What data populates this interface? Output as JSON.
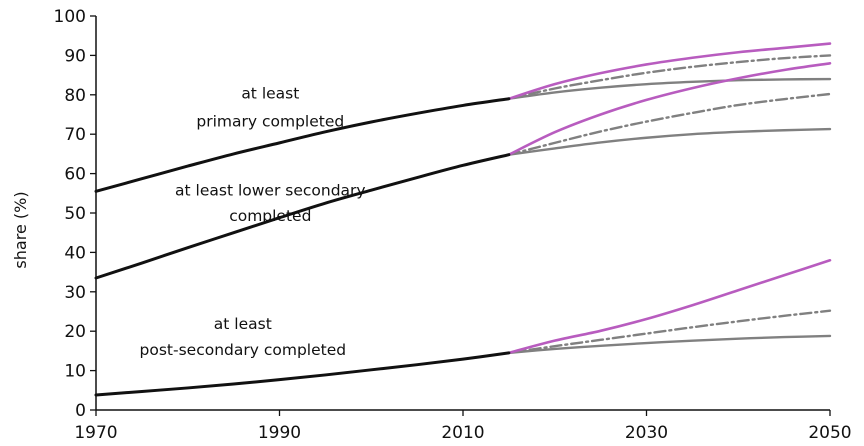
{
  "chart_data": {
    "type": "line",
    "title": "",
    "xlabel": "",
    "ylabel": "share (%)",
    "xlim": [
      1970,
      2050
    ],
    "ylim": [
      0,
      100
    ],
    "x_ticks": [
      1970,
      1990,
      2010,
      2030,
      2050
    ],
    "y_ticks": [
      0,
      10,
      20,
      30,
      40,
      50,
      60,
      70,
      80,
      90,
      100
    ],
    "grid": false,
    "legend": "none",
    "colors": {
      "historical": "#111111",
      "projection_high": "#b85cbf",
      "projection_mid": "#808080",
      "projection_low": "#808080"
    },
    "annotations": [
      {
        "lines": [
          "at least",
          "primary completed"
        ],
        "at": [
          [
            1989,
            79
          ],
          [
            1989,
            72
          ]
        ]
      },
      {
        "lines": [
          "at least lower secondary",
          "completed"
        ],
        "at": [
          [
            1989,
            54.5
          ],
          [
            1989,
            48
          ]
        ]
      },
      {
        "lines": [
          "at least",
          "post-secondary completed"
        ],
        "at": [
          [
            1986,
            20.5
          ],
          [
            1986,
            14
          ]
        ]
      }
    ],
    "groups": [
      {
        "name": "at least primary completed",
        "historical": {
          "x": [
            1970,
            1975,
            1980,
            1985,
            1990,
            1995,
            2000,
            2005,
            2010,
            2015
          ],
          "y": [
            55.5,
            58.7,
            61.9,
            65,
            67.8,
            70.6,
            73.1,
            75.3,
            77.3,
            79
          ]
        },
        "projections": [
          {
            "style": "high",
            "x": [
              2015,
              2020,
              2025,
              2030,
              2035,
              2040,
              2045,
              2050
            ],
            "y": [
              79,
              82.7,
              85.5,
              87.7,
              89.4,
              90.8,
              91.9,
              93
            ]
          },
          {
            "style": "mid",
            "x": [
              2015,
              2020,
              2025,
              2030,
              2035,
              2040,
              2045,
              2050
            ],
            "y": [
              79,
              81.6,
              83.7,
              85.6,
              87.1,
              88.3,
              89.3,
              90
            ]
          },
          {
            "style": "low",
            "x": [
              2015,
              2020,
              2025,
              2030,
              2035,
              2040,
              2045,
              2050
            ],
            "y": [
              79,
              80.6,
              81.8,
              82.7,
              83.3,
              83.7,
              83.9,
              84
            ]
          }
        ]
      },
      {
        "name": "at least lower secondary completed",
        "historical": {
          "x": [
            1970,
            1975,
            1980,
            1985,
            1990,
            1995,
            2000,
            2005,
            2010,
            2015
          ],
          "y": [
            33.5,
            37.3,
            41.2,
            45,
            48.8,
            52.5,
            55.8,
            59,
            62.1,
            64.8
          ]
        },
        "projections": [
          {
            "style": "high",
            "x": [
              2015,
              2020,
              2025,
              2030,
              2035,
              2040,
              2045,
              2050
            ],
            "y": [
              64.8,
              70.5,
              75,
              78.7,
              81.7,
              84.2,
              86.3,
              88
            ]
          },
          {
            "style": "mid",
            "x": [
              2015,
              2020,
              2025,
              2030,
              2035,
              2040,
              2045,
              2050
            ],
            "y": [
              64.8,
              67.8,
              70.7,
              73.2,
              75.4,
              77.4,
              78.9,
              80.2
            ]
          },
          {
            "style": "low",
            "x": [
              2015,
              2020,
              2025,
              2030,
              2035,
              2040,
              2045,
              2050
            ],
            "y": [
              64.8,
              66.4,
              67.9,
              69.1,
              70,
              70.6,
              71,
              71.3
            ]
          }
        ]
      },
      {
        "name": "at least post-secondary completed",
        "historical": {
          "x": [
            1970,
            1975,
            1980,
            1985,
            1990,
            1995,
            2000,
            2005,
            2010,
            2015
          ],
          "y": [
            3.8,
            4.7,
            5.6,
            6.6,
            7.7,
            8.9,
            10.2,
            11.5,
            12.9,
            14.5
          ]
        },
        "projections": [
          {
            "style": "high",
            "x": [
              2015,
              2020,
              2025,
              2030,
              2035,
              2040,
              2045,
              2050
            ],
            "y": [
              14.5,
              17.6,
              20.1,
              23.1,
              26.6,
              30.4,
              34.2,
              38
            ]
          },
          {
            "style": "mid",
            "x": [
              2015,
              2020,
              2025,
              2030,
              2035,
              2040,
              2045,
              2050
            ],
            "y": [
              14.5,
              16.2,
              17.8,
              19.4,
              21,
              22.5,
              23.9,
              25.2
            ]
          },
          {
            "style": "low",
            "x": [
              2015,
              2020,
              2025,
              2030,
              2035,
              2040,
              2045,
              2050
            ],
            "y": [
              14.5,
              15.5,
              16.3,
              17,
              17.6,
              18.1,
              18.5,
              18.8
            ]
          }
        ]
      }
    ]
  }
}
